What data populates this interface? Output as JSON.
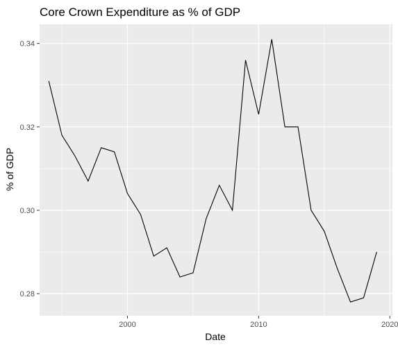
{
  "chart_data": {
    "type": "line",
    "title": "Core Crown Expenditure as % of GDP",
    "xlabel": "Date",
    "ylabel": "% of GDP",
    "xlim": [
      1993.3,
      2020.2
    ],
    "ylim": [
      0.2747,
      0.3446
    ],
    "x_ticks": [
      2000,
      2010,
      2020
    ],
    "x_tick_labels": [
      "2000",
      "2010",
      "2020"
    ],
    "y_ticks": [
      0.28,
      0.3,
      0.32,
      0.34
    ],
    "y_tick_labels": [
      "0.28",
      "0.30",
      "0.32",
      "0.34"
    ],
    "grid": true,
    "colors": {
      "panel": "#ebebeb",
      "grid": "#ffffff",
      "line": "#000000",
      "tick": "#333333",
      "tick_label": "#4d4d4d"
    },
    "series": [
      {
        "name": "Core Crown Expenditure",
        "x": [
          1994,
          1995,
          1996,
          1997,
          1998,
          1999,
          2000,
          2001,
          2002,
          2003,
          2004,
          2005,
          2006,
          2007,
          2008,
          2009,
          2010,
          2011,
          2012,
          2013,
          2014,
          2015,
          2016,
          2017,
          2018,
          2019
        ],
        "values": [
          0.331,
          0.318,
          0.313,
          0.307,
          0.315,
          0.314,
          0.304,
          0.299,
          0.289,
          0.291,
          0.284,
          0.285,
          0.298,
          0.306,
          0.3,
          0.336,
          0.323,
          0.341,
          0.32,
          0.32,
          0.3,
          0.295,
          0.286,
          0.278,
          0.279,
          0.29
        ]
      }
    ]
  }
}
